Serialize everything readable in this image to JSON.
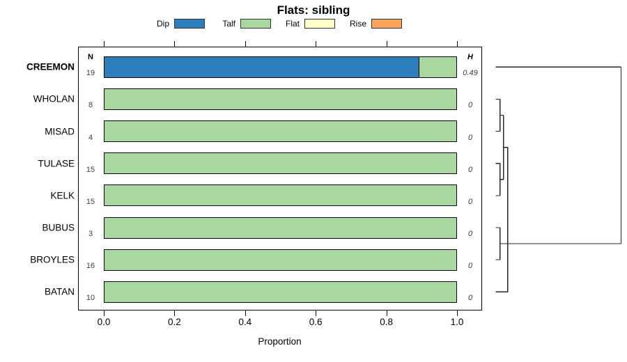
{
  "chart_data": {
    "type": "bar",
    "orientation": "horizontal-stacked",
    "title": "Flats: sibling",
    "xlabel": "Proportion",
    "xlim": [
      0,
      1
    ],
    "x_ticks": [
      "0.0",
      "0.2",
      "0.4",
      "0.6",
      "0.8",
      "1.0"
    ],
    "x_tick_values": [
      0,
      0.2,
      0.4,
      0.6,
      0.8,
      1.0
    ],
    "grid": false,
    "legend_position": "top",
    "n_header": "N",
    "h_header": "H",
    "categories": [
      "CREEMON",
      "WHOLAN",
      "MISAD",
      "TULASE",
      "KELK",
      "BUBUS",
      "BROYLES",
      "BATAN"
    ],
    "bold_categories": [
      "CREEMON"
    ],
    "n_values": [
      "19",
      "8",
      "4",
      "15",
      "15",
      "3",
      "16",
      "10"
    ],
    "h_values": [
      "0.49",
      "0",
      "0",
      "0",
      "0",
      "0",
      "0",
      "0"
    ],
    "series": [
      {
        "name": "Dip",
        "color": "#2e7ebc",
        "values": [
          0.895,
          0,
          0,
          0,
          0,
          0,
          0,
          0
        ]
      },
      {
        "name": "Talf",
        "color": "#a8d8a0",
        "values": [
          0.105,
          1,
          1,
          1,
          1,
          1,
          1,
          1
        ]
      },
      {
        "name": "Flat",
        "color": "#ffffcc",
        "values": [
          0,
          0,
          0,
          0,
          0,
          0,
          0,
          0
        ]
      },
      {
        "name": "Rise",
        "color": "#f9a45c",
        "values": [
          0,
          0,
          0,
          0,
          0,
          0,
          0,
          0
        ]
      }
    ],
    "dendrogram": {
      "leaf_order": [
        "CREEMON",
        "WHOLAN",
        "MISAD",
        "TULASE",
        "KELK",
        "BUBUS",
        "BROYLES",
        "BATAN"
      ],
      "line_color": "#262626",
      "segments": [
        [
          0,
          0,
          180,
          0
        ],
        [
          180,
          0,
          180,
          5.5
        ],
        [
          17.3,
          5.5,
          180,
          5.5
        ],
        [
          0,
          1,
          6.3,
          1
        ],
        [
          0,
          2,
          6.3,
          2
        ],
        [
          6.3,
          1,
          6.3,
          2
        ],
        [
          6.3,
          1.5,
          11.3,
          1.5
        ],
        [
          0,
          3,
          6.3,
          3
        ],
        [
          0,
          4,
          6.3,
          4
        ],
        [
          6.3,
          3,
          6.3,
          4
        ],
        [
          6.3,
          3.5,
          11.3,
          3.5
        ],
        [
          11.3,
          1.5,
          11.3,
          3.5
        ],
        [
          11.3,
          2.5,
          17.3,
          2.5
        ],
        [
          0,
          5,
          6.3,
          5
        ],
        [
          0,
          6,
          6.3,
          6
        ],
        [
          6.3,
          5,
          6.3,
          6
        ],
        [
          6.3,
          5.5,
          17.3,
          5.5
        ],
        [
          0,
          7,
          17.3,
          7
        ],
        [
          17.3,
          2.5,
          17.3,
          7
        ]
      ]
    }
  }
}
